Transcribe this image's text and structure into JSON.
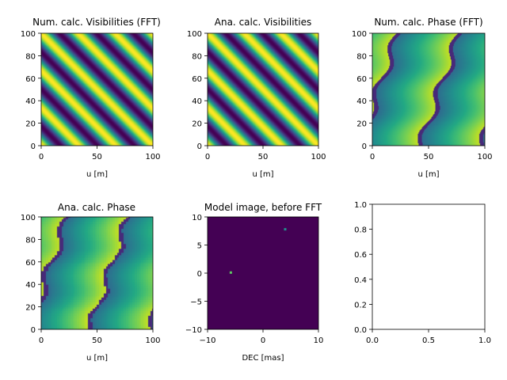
{
  "chart_data": [
    {
      "type": "heatmap",
      "title": "Num. calc. Visibilities (FFT)",
      "xlabel": "u [m]",
      "ylabel": "",
      "xlim": [
        0,
        100
      ],
      "ylim": [
        0,
        100
      ],
      "xticks": [
        "0",
        "50",
        "100"
      ],
      "yticks": [
        "0",
        "20",
        "40",
        "60",
        "80",
        "100"
      ],
      "colormap": "viridis",
      "pattern": "visibility",
      "grid": false
    },
    {
      "type": "heatmap",
      "title": "Ana. calc. Visibilities",
      "xlabel": "u [m]",
      "ylabel": "",
      "xlim": [
        0,
        100
      ],
      "ylim": [
        0,
        100
      ],
      "xticks": [
        "0",
        "50",
        "100"
      ],
      "yticks": [
        "0",
        "20",
        "40",
        "60",
        "80",
        "100"
      ],
      "colormap": "viridis",
      "pattern": "visibility",
      "grid": false
    },
    {
      "type": "heatmap",
      "title": "Num. calc. Phase (FFT)",
      "xlabel": "u [m]",
      "ylabel": "",
      "xlim": [
        0,
        100
      ],
      "ylim": [
        0,
        100
      ],
      "xticks": [
        "0",
        "50",
        "100"
      ],
      "yticks": [
        "0",
        "20",
        "40",
        "60",
        "80",
        "100"
      ],
      "colormap": "viridis",
      "pattern": "phase",
      "grid": false
    },
    {
      "type": "heatmap",
      "title": "Ana. calc. Phase",
      "xlabel": "u [m]",
      "ylabel": "",
      "xlim": [
        0,
        100
      ],
      "ylim": [
        0,
        100
      ],
      "xticks": [
        "0",
        "50",
        "100"
      ],
      "yticks": [
        "0",
        "20",
        "40",
        "60",
        "80",
        "100"
      ],
      "colormap": "viridis",
      "pattern": "phase_pixelated",
      "grid": false
    },
    {
      "type": "heatmap",
      "title": "Model image, before FFT",
      "xlabel": "DEC [mas]",
      "ylabel": "",
      "xlim": [
        -10,
        10
      ],
      "ylim": [
        -10,
        10
      ],
      "xticks": [
        "−10",
        "0",
        "10"
      ],
      "yticks": [
        "−10",
        "−5",
        "0",
        "5",
        "10"
      ],
      "colormap": "viridis",
      "pattern": "point_sources",
      "background_color": "#440154",
      "points": [
        {
          "x": -5.8,
          "y": 0.1,
          "color": "#5ec962"
        },
        {
          "x": 4.0,
          "y": 7.8,
          "color": "#21918c"
        }
      ],
      "grid": false
    },
    {
      "type": "scatter",
      "title": "",
      "xlabel": "",
      "ylabel": "",
      "xlim": [
        0,
        1
      ],
      "ylim": [
        0,
        1
      ],
      "xticks": [
        "0.0",
        "0.5",
        "1.0"
      ],
      "yticks": [
        "0.0",
        "0.2",
        "0.4",
        "0.6",
        "0.8",
        "1.0"
      ],
      "pattern": "empty",
      "grid": false
    }
  ]
}
